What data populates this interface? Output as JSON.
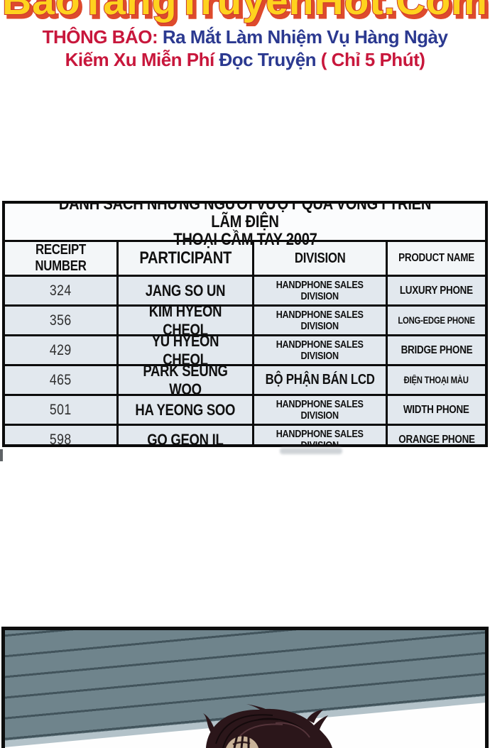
{
  "banner": {
    "logo_text": "BaoTangTruyenHot.Com",
    "notice_line1": [
      {
        "text": "THÔNG BÁO: ",
        "color": "red"
      },
      {
        "text": "Ra Mắt Làm Nhiệm Vụ Hàng Ngày",
        "color": "blue"
      }
    ],
    "notice_line2": [
      {
        "text": "Kiếm Xu Miễn Phí ",
        "color": "red"
      },
      {
        "text": "Đọc Truyện ",
        "color": "blue"
      },
      {
        "text": "( Chỉ 5 Phút)",
        "color": "red"
      }
    ]
  },
  "table": {
    "title_line1": "DANH SÁCH NHỮNG NGƯỜI VƯỢT QUA VÒNG I TRIỂN LÃM ĐIỆN",
    "title_line2": "THOẠI CẦM TAY 2007",
    "columns": [
      "RECEIPT NUMBER",
      "PARTICIPANT",
      "DIVISION",
      "PRODUCT NAME"
    ],
    "rows": [
      {
        "receipt": "324",
        "participant": "JANG SO UN",
        "division": "HANDPHONE SALES\nDIVISION",
        "product": "LUXURY PHONE"
      },
      {
        "receipt": "356",
        "participant": "KIM HYEON CHEOL",
        "division": "HANDPHONE SALES\nDIVISION",
        "product": "LONG-EDGE PHONE"
      },
      {
        "receipt": "429",
        "participant": "YU HYEON CHEOL",
        "division": "HANDPHONE SALES\nDIVISION",
        "product": "BRIDGE PHONE"
      },
      {
        "receipt": "465",
        "participant": "PARK SEUNG WOO",
        "division": "BỘ PHẬN BÁN LCD",
        "product": "ĐIỆN THOẠI MÀU"
      },
      {
        "receipt": "501",
        "participant": "HA YEONG SOO",
        "division": "HANDPHONE SALES\nDIVISION",
        "product": "WIDTH PHONE"
      },
      {
        "receipt": "598",
        "participant": "GO GEON IL",
        "division": "HANDPHONE SALES\nDIVISION",
        "product": "ORANGE PHONE"
      }
    ]
  },
  "colors": {
    "logo_fill": "#ffd21e",
    "logo_outline": "#c8372a",
    "logo_extrude": "#de4a2d",
    "notice_red": "#c8173c",
    "notice_blue": "#2b3990",
    "row_bg": "#e2e8ee",
    "plank": "#6f848c",
    "plank_line": "#42545c",
    "plank_edge": "#b3c2c9",
    "hair": "#2b161a",
    "skin": "#c9b399"
  }
}
